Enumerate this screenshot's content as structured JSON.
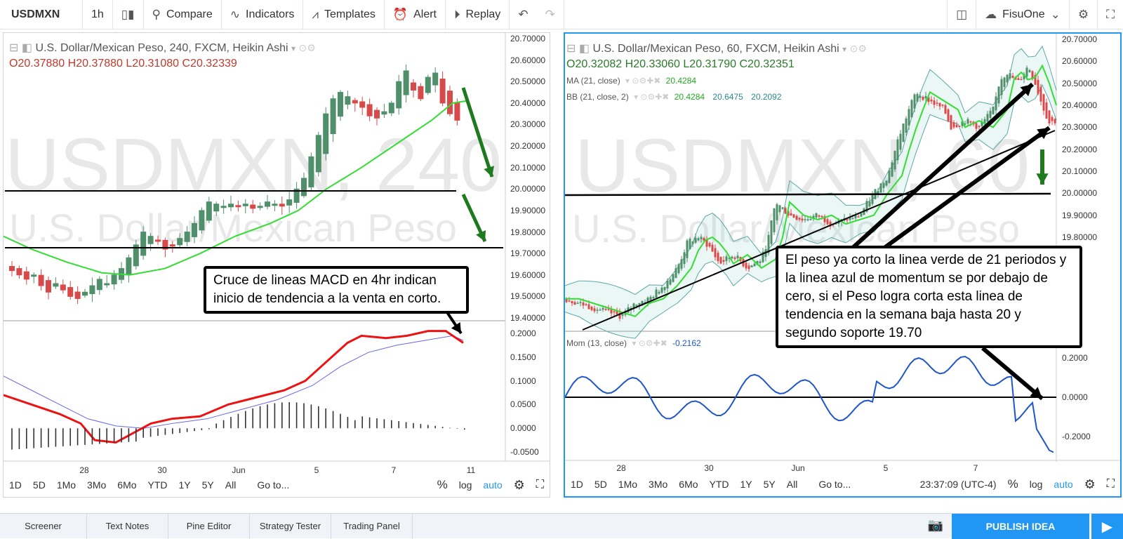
{
  "toolbar": {
    "symbol": "USDMXN",
    "interval": "1h",
    "compare": "Compare",
    "indicators": "Indicators",
    "templates": "Templates",
    "alert": "Alert",
    "replay": "Replay",
    "account": "FisuOne"
  },
  "left_chart": {
    "watermark_big": "USDMXN, 240",
    "watermark_small": "U.S. Dollar/Mexican Peso",
    "title": "U.S. Dollar/Mexican Peso, 240, FXCM, Heikin Ashi",
    "ohlc": {
      "o": "O20.37880",
      "h": "H20.37880",
      "l": "L20.31080",
      "c": "C20.32339"
    },
    "price_axis": [
      "20.70000",
      "20.60000",
      "20.50000",
      "20.40000",
      "20.30000",
      "20.20000",
      "20.10000",
      "20.00000",
      "19.90000",
      "19.80000",
      "19.70000",
      "19.60000",
      "19.50000",
      "19.40000"
    ],
    "macd_axis": [
      "0.2000",
      "0.1500",
      "0.1000",
      "0.0500",
      "0.0000",
      "-0.0500"
    ],
    "time_axis": [
      "28",
      "30",
      "Jun",
      "5",
      "7",
      "11"
    ],
    "callout": "Cruce de lineas MACD en 4hr indican inicio de tendencia a la venta en corto."
  },
  "right_chart": {
    "watermark_big": "USDMXN, 60",
    "watermark_small": "U.S. Dollar/Mexican Peso",
    "title": "U.S. Dollar/Mexican Peso, 60, FXCM, Heikin Ashi",
    "ohlc": {
      "o": "O20.32082",
      "h": "H20.33060",
      "l": "L20.31790",
      "c": "C20.32351"
    },
    "ma_label": "MA (21, close)",
    "ma_value": "20.4284",
    "bb_label": "BB (21, close, 2)",
    "bb_values": [
      "20.4284",
      "20.6475",
      "20.2092"
    ],
    "mom_label": "Mom (13, close)",
    "mom_value": "-0.2162",
    "price_axis": [
      "20.70000",
      "20.60000",
      "20.50000",
      "20.40000",
      "20.30000",
      "20.20000",
      "20.10000",
      "20.00000",
      "19.90000",
      "19.80000"
    ],
    "mom_axis": [
      "0.2000",
      "0.0000",
      "-0.2000"
    ],
    "time_axis": [
      "28",
      "30",
      "Jun",
      "5",
      "7"
    ],
    "clock": "23:37:09 (UTC-4)",
    "callout": "El peso ya corto la linea verde de 21 periodos y la linea azul de momentum se por debajo de cero, si el Peso logra corta esta linea de tendencia en la semana baja hasta 20 y segundo soporte 19.70"
  },
  "range_bar": {
    "ranges": [
      "1D",
      "5D",
      "1Mo",
      "3Mo",
      "6Mo",
      "YTD",
      "1Y",
      "5Y",
      "All"
    ],
    "goto": "Go to...",
    "percent": "%",
    "log": "log",
    "auto": "auto"
  },
  "footer": {
    "tabs": [
      "Screener",
      "Text Notes",
      "Pine Editor",
      "Strategy Tester",
      "Trading Panel"
    ],
    "publish": "PUBLISH IDEA"
  },
  "colors": {
    "up_candle": "#4f8f6a",
    "down_candle": "#d84a4a",
    "ma_line": "#33dd33",
    "macd_red": "#ee1111",
    "signal_blue": "#6666ee",
    "momentum": "#1e55cc",
    "bb": "#5aa8a8",
    "arrow_green": "#1f7a1f",
    "accent": "#2196f3"
  }
}
